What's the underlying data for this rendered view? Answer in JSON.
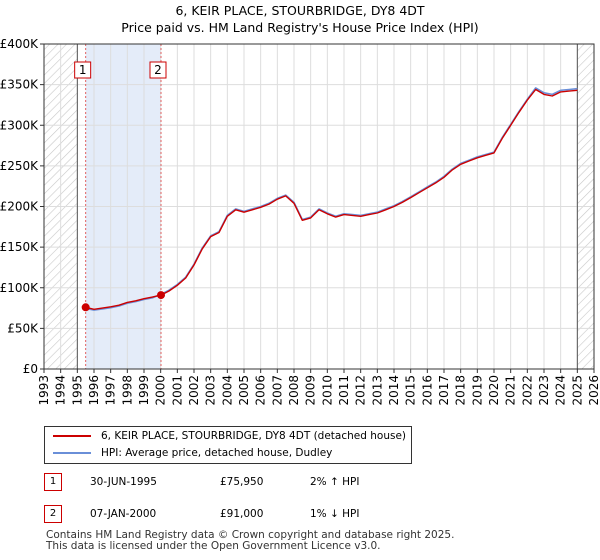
{
  "chart_data": {
    "type": "line",
    "title": "6, KEIR PLACE, STOURBRIDGE, DY8 4DT",
    "subtitle": "Price paid vs. HM Land Registry's House Price Index (HPI)",
    "xlim": [
      1993,
      2026
    ],
    "ylim": [
      0,
      400000
    ],
    "x_ticks": [
      "1993",
      "1994",
      "1995",
      "1996",
      "1997",
      "1998",
      "1999",
      "2000",
      "2001",
      "2002",
      "2003",
      "2004",
      "2005",
      "2006",
      "2007",
      "2008",
      "2009",
      "2010",
      "2011",
      "2012",
      "2013",
      "2014",
      "2015",
      "2016",
      "2017",
      "2018",
      "2019",
      "2020",
      "2021",
      "2022",
      "2023",
      "2024",
      "2025",
      "2026"
    ],
    "y_ticks": [
      {
        "value": 0,
        "label": "£0"
      },
      {
        "value": 50000,
        "label": "£50K"
      },
      {
        "value": 100000,
        "label": "£100K"
      },
      {
        "value": 150000,
        "label": "£150K"
      },
      {
        "value": 200000,
        "label": "£200K"
      },
      {
        "value": 250000,
        "label": "£250K"
      },
      {
        "value": 300000,
        "label": "£300K"
      },
      {
        "value": 350000,
        "label": "£350K"
      },
      {
        "value": 400000,
        "label": "£400K"
      }
    ],
    "hatch_before": 1995.0,
    "hatch_after": 2025.0,
    "ownership_shade": [
      1995.5,
      2000.02
    ],
    "series": [
      {
        "name": "6, KEIR PLACE, STOURBRIDGE, DY8 4DT (detached house)",
        "color": "#cc0000",
        "x": [
          1995.5,
          1996,
          1996.5,
          1997,
          1997.5,
          1998,
          1998.5,
          1999,
          1999.5,
          2000.02,
          2000.5,
          2001,
          2001.5,
          2002,
          2002.5,
          2003,
          2003.5,
          2004,
          2004.5,
          2005,
          2005.5,
          2006,
          2006.5,
          2007,
          2007.5,
          2008,
          2008.5,
          2009,
          2009.5,
          2010,
          2010.5,
          2011,
          2011.5,
          2012,
          2012.5,
          2013,
          2013.5,
          2014,
          2014.5,
          2015,
          2015.5,
          2016,
          2016.5,
          2017,
          2017.5,
          2018,
          2018.5,
          2019,
          2019.5,
          2020,
          2020.5,
          2021,
          2021.5,
          2022,
          2022.5,
          2023,
          2023.5,
          2024,
          2024.5,
          2025
        ],
        "values": [
          75950,
          73500,
          75000,
          76500,
          78500,
          82000,
          84000,
          86500,
          88500,
          91000,
          96000,
          103000,
          112000,
          128000,
          148000,
          163000,
          168000,
          188000,
          196000,
          193000,
          196000,
          199000,
          203000,
          209000,
          213000,
          204000,
          183000,
          186000,
          196000,
          191000,
          187000,
          190000,
          189000,
          188000,
          190000,
          192000,
          196000,
          200000,
          205000,
          211000,
          217000,
          223000,
          229000,
          236000,
          245000,
          252000,
          256000,
          260000,
          263000,
          266000,
          284000,
          300000,
          316000,
          331000,
          344000,
          338000,
          336000,
          341000,
          342000,
          343000
        ]
      },
      {
        "name": "HPI: Average price, detached house, Dudley",
        "color": "#6a8fd8",
        "x": [
          1995.5,
          1996,
          1996.5,
          1997,
          1997.5,
          1998,
          1998.5,
          1999,
          1999.5,
          2000.02,
          2000.5,
          2001,
          2001.5,
          2002,
          2002.5,
          2003,
          2003.5,
          2004,
          2004.5,
          2005,
          2005.5,
          2006,
          2006.5,
          2007,
          2007.5,
          2008,
          2008.5,
          2009,
          2009.5,
          2010,
          2010.5,
          2011,
          2011.5,
          2012,
          2012.5,
          2013,
          2013.5,
          2014,
          2014.5,
          2015,
          2015.5,
          2016,
          2016.5,
          2017,
          2017.5,
          2018,
          2018.5,
          2019,
          2019.5,
          2020,
          2020.5,
          2021,
          2021.5,
          2022,
          2022.5,
          2023,
          2023.5,
          2024,
          2024.5,
          2025
        ],
        "values": [
          74500,
          72500,
          74000,
          75500,
          77500,
          81000,
          83000,
          85500,
          87500,
          92000,
          97000,
          104000,
          113000,
          129000,
          149000,
          164000,
          169000,
          189000,
          197000,
          194000,
          197000,
          200000,
          204000,
          210000,
          214000,
          205000,
          184000,
          187000,
          197000,
          192000,
          188000,
          191000,
          190000,
          189000,
          191000,
          193000,
          197000,
          201000,
          206000,
          212000,
          218000,
          224000,
          230000,
          237000,
          246000,
          253000,
          257000,
          261000,
          264000,
          267000,
          285000,
          301000,
          317000,
          332000,
          346000,
          340000,
          338000,
          343000,
          344000,
          345000
        ]
      }
    ],
    "sales": [
      {
        "label": "1",
        "x": 1995.5,
        "value": 75950
      },
      {
        "label": "2",
        "x": 2000.02,
        "value": 91000
      }
    ]
  },
  "legend": {
    "property": "6, KEIR PLACE, STOURBRIDGE, DY8 4DT (detached house)",
    "hpi": "HPI: Average price, detached house, Dudley"
  },
  "colors": {
    "property": "#cc0000",
    "hpi": "#6a8fd8"
  },
  "sales_table": [
    {
      "label": "1",
      "date": "30-JUN-1995",
      "price": "£75,950",
      "hpi": "2% ↑ HPI"
    },
    {
      "label": "2",
      "date": "07-JAN-2000",
      "price": "£91,000",
      "hpi": "1% ↓ HPI"
    }
  ],
  "footer": {
    "line1": "Contains HM Land Registry data © Crown copyright and database right 2025.",
    "line2": "This data is licensed under the Open Government Licence v3.0."
  }
}
